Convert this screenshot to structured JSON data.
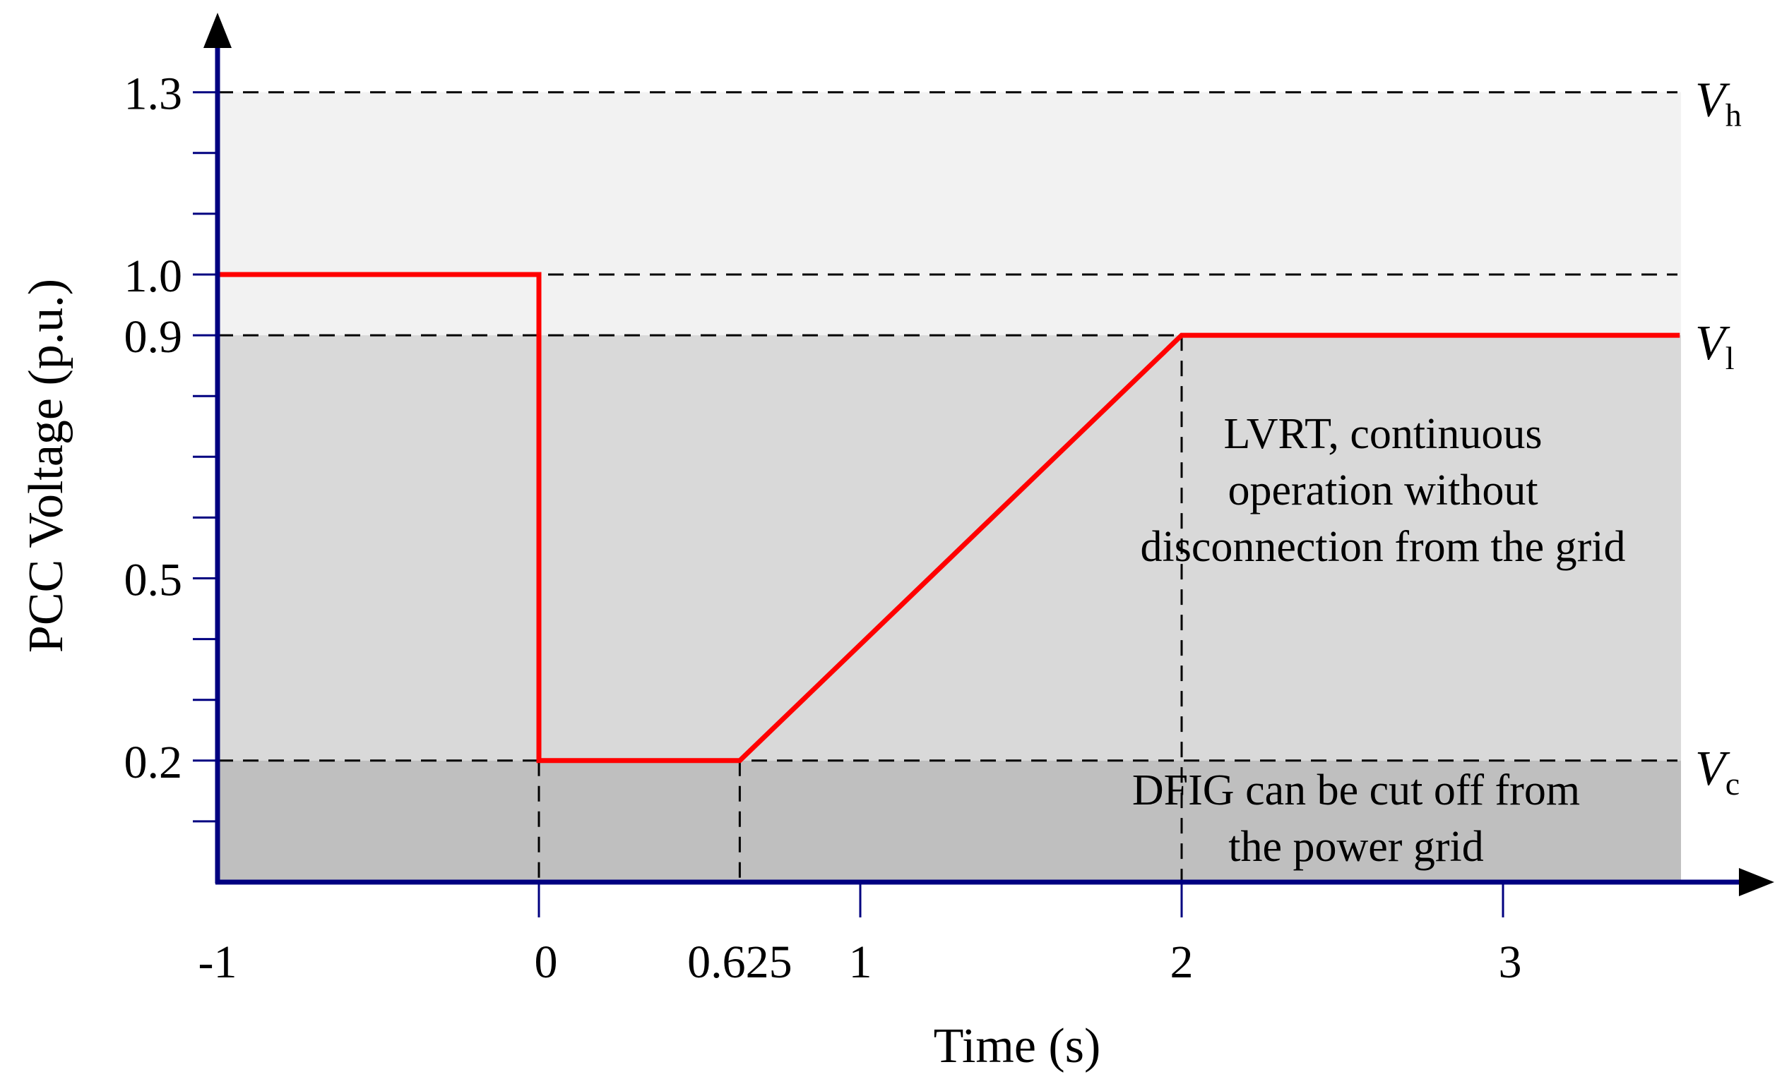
{
  "chart_data": {
    "type": "line",
    "xlabel": "Time (s)",
    "ylabel": "PCC Voltage (p.u.)",
    "xlim": [
      -1,
      3.6
    ],
    "ylim": [
      0,
      1.3
    ],
    "x_tick_labels": [
      {
        "value": -1,
        "label": "-1"
      },
      {
        "value": 0,
        "label": "0"
      },
      {
        "value": 0.625,
        "label": "0.625"
      },
      {
        "value": 1,
        "label": "1"
      },
      {
        "value": 2,
        "label": "2"
      },
      {
        "value": 3,
        "label": "3"
      }
    ],
    "y_tick_labels": [
      {
        "value": 0.2,
        "label": "0.2"
      },
      {
        "value": 0.5,
        "label": "0.5"
      },
      {
        "value": 0.9,
        "label": "0.9"
      },
      {
        "value": 1.0,
        "label": "1.0"
      },
      {
        "value": 1.3,
        "label": "1.3"
      }
    ],
    "y_minor_ticks": [
      0.1,
      0.2,
      0.3,
      0.4,
      0.5,
      0.6,
      0.7,
      0.8,
      0.9,
      1.0,
      1.1,
      1.2,
      1.3
    ],
    "x_minor_ticks": [
      0,
      1,
      2,
      3
    ],
    "series": [
      {
        "color": "#ff0000",
        "x": [
          -1,
          0,
          0,
          0.625,
          2,
          3.55
        ],
        "y": [
          1.0,
          1.0,
          0.2,
          0.2,
          0.9,
          0.9
        ]
      }
    ],
    "reference_lines": [
      {
        "value": 1.3,
        "symbol": "V",
        "subscript": "h"
      },
      {
        "value": 1.0,
        "symbol": "",
        "subscript": ""
      },
      {
        "value": 0.9,
        "symbol": "V",
        "subscript": "l"
      },
      {
        "value": 0.2,
        "symbol": "V",
        "subscript": "c"
      }
    ],
    "vertical_guides": [
      0,
      0.625,
      2
    ],
    "regions": [
      {
        "from": 0.9,
        "to": 1.3,
        "color": "#f2f2f2"
      },
      {
        "from": 0.2,
        "to": 0.9,
        "color": "#d9d9d9"
      },
      {
        "from": 0.0,
        "to": 0.2,
        "color": "#bfbfbf"
      }
    ],
    "annotations": [
      {
        "lines": [
          "LVRT, continuous",
          "operation without",
          "disconnection from the grid"
        ]
      },
      {
        "lines": [
          "DFIG can be cut off from",
          "the power grid"
        ]
      }
    ],
    "grid": false,
    "axis_color": "#000080",
    "line_color": "#ff0000"
  }
}
